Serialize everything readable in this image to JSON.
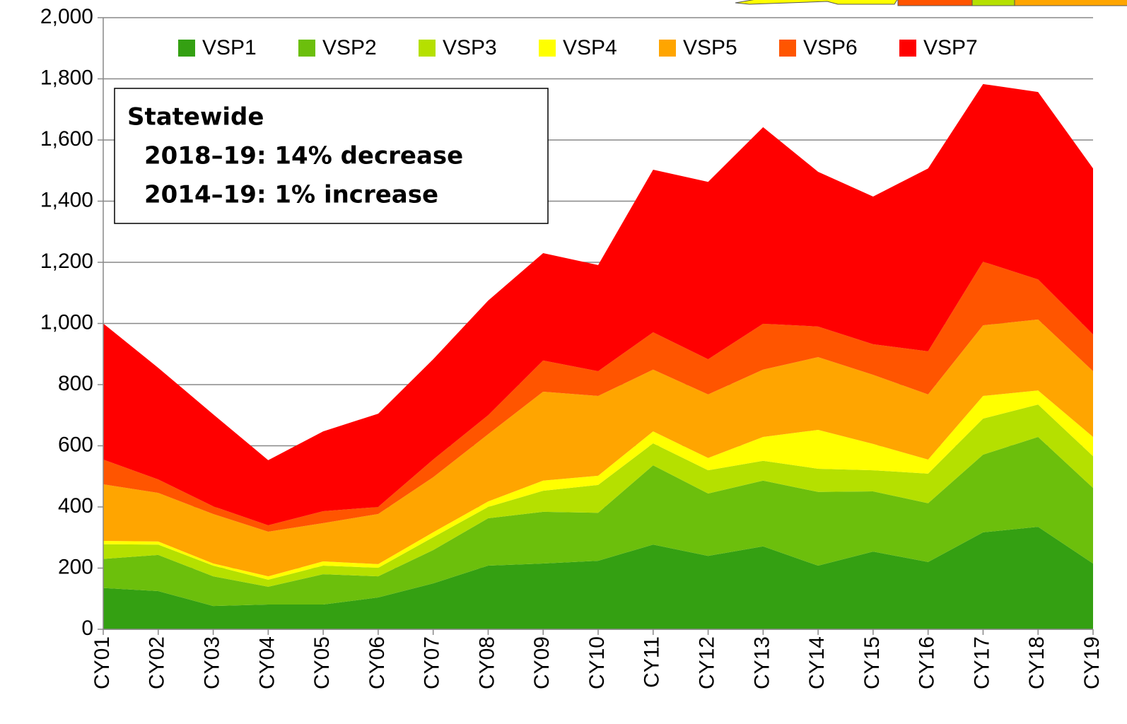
{
  "chart_data": {
    "type": "stacked_area",
    "categories": [
      "CY01",
      "CY02",
      "CY03",
      "CY04",
      "CY05",
      "CY06",
      "CY07",
      "CY08",
      "CY09",
      "CY10",
      "CY11",
      "CY12",
      "CY13",
      "CY14",
      "CY15",
      "CY16",
      "CY17",
      "CY18",
      "CY19"
    ],
    "series": [
      {
        "name": "VSP1",
        "color": "#34a012",
        "values": [
          135,
          125,
          76,
          81,
          81,
          104,
          150,
          208,
          215,
          224,
          277,
          240,
          271,
          208,
          254,
          220,
          317,
          335,
          215
        ]
      },
      {
        "name": "VSP2",
        "color": "#6cbf0c",
        "values": [
          95,
          118,
          97,
          58,
          99,
          69,
          109,
          155,
          169,
          157,
          259,
          204,
          215,
          241,
          197,
          192,
          254,
          294,
          247
        ]
      },
      {
        "name": "VSP3",
        "color": "#b5e000",
        "values": [
          48,
          34,
          35,
          23,
          28,
          28,
          42,
          37,
          69,
          91,
          72,
          76,
          65,
          76,
          69,
          97,
          118,
          106,
          104
        ]
      },
      {
        "name": "VSP4",
        "color": "#ffff00",
        "values": [
          11,
          10,
          7,
          11,
          14,
          12,
          16,
          18,
          33,
          30,
          39,
          40,
          78,
          127,
          86,
          46,
          74,
          46,
          63
        ]
      },
      {
        "name": "VSP5",
        "color": "#ffa500",
        "values": [
          185,
          159,
          162,
          146,
          125,
          164,
          180,
          220,
          291,
          261,
          202,
          208,
          220,
          238,
          226,
          213,
          231,
          232,
          215
        ]
      },
      {
        "name": "VSP6",
        "color": "#ff5500",
        "values": [
          81,
          44,
          25,
          21,
          39,
          23,
          58,
          62,
          102,
          81,
          122,
          115,
          150,
          100,
          100,
          141,
          208,
          131,
          120
        ]
      },
      {
        "name": "VSP7",
        "color": "#ff0000",
        "values": [
          445,
          365,
          301,
          213,
          261,
          305,
          328,
          375,
          351,
          347,
          532,
          580,
          643,
          506,
          483,
          598,
          581,
          613,
          543
        ]
      }
    ],
    "ylim": [
      0,
      2000
    ],
    "yticks": [
      0,
      200,
      400,
      600,
      800,
      {
        "value": 1000,
        "label": "1,000"
      },
      {
        "value": 1200,
        "label": "1,200"
      },
      {
        "value": 1400,
        "label": "1,400"
      },
      {
        "value": 1600,
        "label": "1,600"
      },
      {
        "value": 1800,
        "label": "1,800"
      },
      {
        "value": 2000,
        "label": "2,000"
      }
    ],
    "grid": true,
    "legend": "top",
    "annotations": [
      "Statewide",
      "2018–19: 14% decrease",
      "2014–19: 1% increase"
    ]
  }
}
